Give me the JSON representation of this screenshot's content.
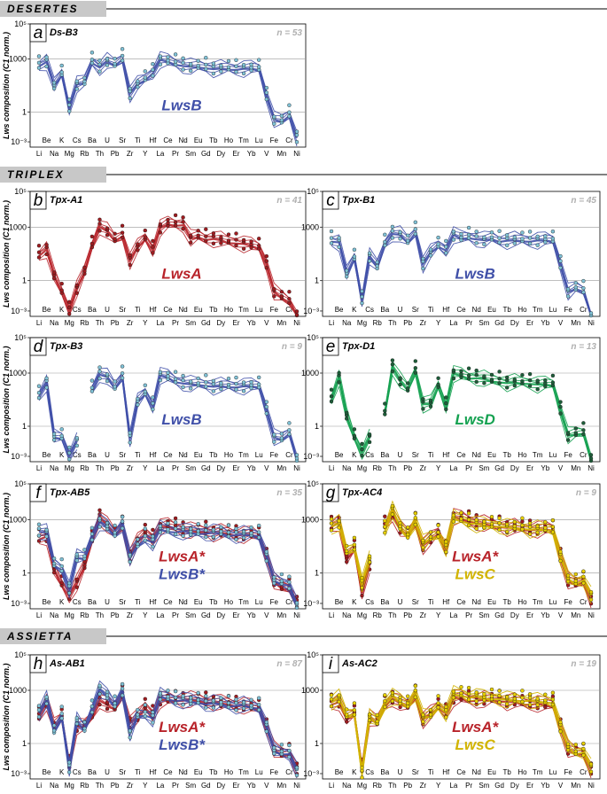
{
  "sections": [
    {
      "label": "DESERTES"
    },
    {
      "label": "TRIPLEX"
    },
    {
      "label": "ASSIETTA"
    }
  ],
  "colors": {
    "LwsA": "#b8232a",
    "LwsB": "#3f4fa8",
    "LwsC": "#d2b400",
    "LwsD": "#14a150",
    "LwsB_pt": "#7fc1d6",
    "LwsA_pt": "#a01c20",
    "LwsC_pt": "#e8d000",
    "LwsD_pt": "#1e5e3a"
  },
  "ylabel": "Lws composition (C1 norm.)",
  "xlabels_top": [
    "Be",
    "K",
    "Cs",
    "Ba",
    "U",
    "Sr",
    "Ti",
    "Hf",
    "Ce",
    "Nd",
    "Eu",
    "Tb",
    "Ho",
    "Tm",
    "Lu",
    "Fe",
    "Cr"
  ],
  "xlabels_bottom": [
    "Li",
    "Na",
    "Mg",
    "Rb",
    "Th",
    "Pb",
    "Zr",
    "Y",
    "La",
    "Pr",
    "Sm",
    "Gd",
    "Dy",
    "Er",
    "Yb",
    "V",
    "Mn",
    "Ni"
  ],
  "chart_data": [
    {
      "type": "line",
      "letter": "a",
      "title": "Ds-B3",
      "n_label": "n = 53",
      "groups": [
        {
          "label": "LwsB",
          "color_key": "LwsB"
        }
      ],
      "yscale": "log",
      "ylim": [
        0.01,
        100000
      ],
      "yticks": [
        "10⁵",
        "1000",
        "1",
        "10⁻³"
      ],
      "elements": [
        "Li",
        "Be",
        "Na",
        "K",
        "Mg",
        "Cs",
        "Rb",
        "Ba",
        "Th",
        "U",
        "Pb",
        "Sr",
        "Zr",
        "Ti",
        "Y",
        "Hf",
        "La",
        "Ce",
        "Pr",
        "Nd",
        "Sm",
        "Eu",
        "Gd",
        "Tb",
        "Dy",
        "Ho",
        "Er",
        "Tm",
        "Yb",
        "Lu",
        "V",
        "Fe",
        "Mn",
        "Cr",
        "Ni"
      ],
      "series": [
        {
          "color_key": "LwsB",
          "log_values": [
            2.7,
            2.9,
            1.5,
            2.2,
            0.3,
            1.6,
            1.7,
            2.9,
            2.6,
            2.9,
            2.7,
            3.1,
            1.1,
            1.6,
            1.9,
            2.3,
            3.0,
            2.9,
            2.8,
            2.7,
            2.6,
            2.6,
            2.6,
            2.5,
            2.5,
            2.5,
            2.5,
            2.5,
            2.5,
            2.5,
            1.0,
            -0.4,
            -0.5,
            -0.1,
            -1.4
          ]
        }
      ]
    },
    {
      "type": "line",
      "letter": "b",
      "title": "Tpx-A1",
      "n_label": "n = 41",
      "groups": [
        {
          "label": "LwsA",
          "color_key": "LwsA"
        }
      ],
      "yscale": "log",
      "ylim": [
        0.01,
        100000
      ],
      "yticks": [
        "10⁵",
        "1000",
        "1",
        "10⁻³"
      ],
      "elements": [
        "Li",
        "Be",
        "Na",
        "K",
        "Mg",
        "Cs",
        "Rb",
        "Ba",
        "Th",
        "U",
        "Pb",
        "Sr",
        "Zr",
        "Ti",
        "Y",
        "Hf",
        "La",
        "Ce",
        "Pr",
        "Nd",
        "Sm",
        "Eu",
        "Gd",
        "Tb",
        "Dy",
        "Ho",
        "Er",
        "Tm",
        "Yb",
        "Lu",
        "V",
        "Fe",
        "Mn",
        "Cr",
        "Ni"
      ],
      "series": [
        {
          "color_key": "LwsA",
          "log_values": [
            1.5,
            1.8,
            0.3,
            -0.6,
            -1.6,
            -0.4,
            0.5,
            2.0,
            3.1,
            2.8,
            2.3,
            2.6,
            1.2,
            1.9,
            2.4,
            1.8,
            3.0,
            3.2,
            3.2,
            3.2,
            2.4,
            2.5,
            2.4,
            2.4,
            2.3,
            2.2,
            2.2,
            2.1,
            2.0,
            1.9,
            1.0,
            -0.6,
            -0.9,
            -1.1,
            -2.0
          ]
        }
      ]
    },
    {
      "type": "line",
      "letter": "c",
      "title": "Tpx-B1",
      "n_label": "n = 45",
      "groups": [
        {
          "label": "LwsB",
          "color_key": "LwsB"
        }
      ],
      "yscale": "log",
      "ylim": [
        0.01,
        100000
      ],
      "yticks": [
        "10⁵",
        "1000",
        "1",
        "10⁻³"
      ],
      "elements": [
        "Li",
        "Be",
        "Na",
        "K",
        "Mg",
        "Cs",
        "Rb",
        "Ba",
        "Th",
        "U",
        "Pb",
        "Sr",
        "Zr",
        "Ti",
        "Y",
        "Hf",
        "La",
        "Ce",
        "Pr",
        "Nd",
        "Sm",
        "Eu",
        "Gd",
        "Tb",
        "Dy",
        "Ho",
        "Er",
        "Tm",
        "Yb",
        "Lu",
        "V",
        "Fe",
        "Mn",
        "Cr",
        "Ni"
      ],
      "series": [
        {
          "color_key": "LwsB",
          "log_values": [
            2.3,
            2.2,
            0.4,
            1.3,
            -1.0,
            1.4,
            0.8,
            2.1,
            2.7,
            2.6,
            2.2,
            2.8,
            1.0,
            1.6,
            2.0,
            1.8,
            2.6,
            2.4,
            2.5,
            2.4,
            2.3,
            2.4,
            2.3,
            2.3,
            2.3,
            2.3,
            2.3,
            2.3,
            2.3,
            2.3,
            1.0,
            -0.6,
            -0.4,
            -0.5,
            -2.1
          ]
        }
      ]
    },
    {
      "type": "line",
      "letter": "d",
      "title": "Tpx-B3",
      "n_label": "n = 9",
      "groups": [
        {
          "label": "LwsB",
          "color_key": "LwsB"
        }
      ],
      "yscale": "log",
      "ylim": [
        0.01,
        100000
      ],
      "yticks": [
        "10⁵",
        "1000",
        "1",
        "10⁻³"
      ],
      "elements": [
        "Li",
        "Be",
        "Na",
        "K",
        "Mg",
        "Cs",
        "Rb",
        "Ba",
        "Th",
        "U",
        "Pb",
        "Sr",
        "Zr",
        "Ti",
        "Y",
        "Hf",
        "La",
        "Ce",
        "Pr",
        "Nd",
        "Sm",
        "Eu",
        "Gd",
        "Tb",
        "Dy",
        "Ho",
        "Er",
        "Tm",
        "Yb",
        "Lu",
        "V",
        "Fe",
        "Mn",
        "Cr",
        "Ni"
      ],
      "series": [
        {
          "color_key": "LwsB",
          "log_values": [
            1.8,
            2.5,
            -0.6,
            -0.6,
            -1.6,
            -0.8,
            null,
            2.1,
            3.0,
            2.8,
            2.2,
            2.9,
            -0.6,
            1.4,
            1.9,
            1.2,
            2.9,
            2.8,
            2.6,
            2.5,
            2.4,
            2.4,
            2.4,
            2.3,
            2.3,
            2.3,
            2.3,
            2.3,
            2.3,
            2.3,
            1.0,
            -0.6,
            -0.7,
            -0.3,
            -1.9
          ]
        }
      ]
    },
    {
      "type": "line",
      "letter": "e",
      "title": "Tpx-D1",
      "n_label": "n = 13",
      "groups": [
        {
          "label": "LwsD",
          "color_key": "LwsD"
        }
      ],
      "yscale": "log",
      "ylim": [
        0.01,
        100000
      ],
      "yticks": [
        "10⁵",
        "1000",
        "1",
        "10⁻³"
      ],
      "elements": [
        "Li",
        "Be",
        "Na",
        "K",
        "Mg",
        "Cs",
        "Rb",
        "Ba",
        "Th",
        "U",
        "Pb",
        "Sr",
        "Zr",
        "Ti",
        "Y",
        "Hf",
        "La",
        "Ce",
        "Pr",
        "Nd",
        "Sm",
        "Eu",
        "Gd",
        "Tb",
        "Dy",
        "Ho",
        "Er",
        "Tm",
        "Yb",
        "Lu",
        "V",
        "Fe",
        "Mn",
        "Cr",
        "Ni"
      ],
      "series": [
        {
          "color_key": "LwsD",
          "log_values": [
            1.6,
            2.8,
            0.6,
            -0.6,
            -1.4,
            -0.6,
            null,
            0.8,
            3.4,
            2.6,
            2.1,
            3.2,
            1.3,
            1.3,
            2.3,
            1.2,
            3.0,
            2.9,
            2.8,
            2.8,
            2.7,
            2.6,
            2.6,
            2.5,
            2.5,
            2.5,
            2.5,
            2.4,
            2.4,
            2.4,
            1.0,
            -0.5,
            -0.4,
            -0.3,
            -1.9
          ]
        }
      ]
    },
    {
      "type": "line",
      "letter": "f",
      "title": "Tpx-AB5",
      "n_label": "n = 35",
      "groups": [
        {
          "label": "LwsA*",
          "color_key": "LwsA"
        },
        {
          "label": "LwsB*",
          "color_key": "LwsB"
        }
      ],
      "yscale": "log",
      "ylim": [
        0.01,
        100000
      ],
      "yticks": [
        "10⁵",
        "1000",
        "1",
        "10⁻³"
      ],
      "elements": [
        "Li",
        "Be",
        "Na",
        "K",
        "Mg",
        "Cs",
        "Rb",
        "Ba",
        "Th",
        "U",
        "Pb",
        "Sr",
        "Zr",
        "Ti",
        "Y",
        "Hf",
        "La",
        "Ce",
        "Pr",
        "Nd",
        "Sm",
        "Eu",
        "Gd",
        "Tb",
        "Dy",
        "Ho",
        "Er",
        "Tm",
        "Yb",
        "Lu",
        "V",
        "Fe",
        "Mn",
        "Cr",
        "Ni"
      ],
      "series": [
        {
          "color_key": "LwsA",
          "log_values": [
            2.0,
            2.1,
            0.2,
            -0.6,
            -1.2,
            -0.5,
            0.4,
            1.9,
            3.2,
            2.7,
            2.2,
            2.7,
            1.0,
            1.8,
            2.3,
            2.0,
            2.6,
            2.7,
            2.6,
            2.5,
            2.4,
            2.4,
            2.4,
            2.3,
            2.3,
            2.3,
            2.2,
            2.2,
            2.2,
            2.1,
            1.0,
            -0.4,
            -0.8,
            -0.8,
            -1.6
          ]
        },
        {
          "color_key": "LwsB",
          "log_values": [
            2.4,
            2.3,
            0.5,
            0.3,
            -0.8,
            0.9,
            0.9,
            2.1,
            2.9,
            2.6,
            2.2,
            2.8,
            0.9,
            1.6,
            2.0,
            1.8,
            2.5,
            2.4,
            2.4,
            2.4,
            2.3,
            2.3,
            2.3,
            2.3,
            2.3,
            2.2,
            2.2,
            2.2,
            2.2,
            2.2,
            1.0,
            -0.4,
            -0.5,
            -0.6,
            -1.8
          ]
        }
      ]
    },
    {
      "type": "line",
      "letter": "g",
      "title": "Tpx-AC4",
      "n_label": "n = 9",
      "groups": [
        {
          "label": "LwsA*",
          "color_key": "LwsA"
        },
        {
          "label": "LwsC",
          "color_key": "LwsC"
        }
      ],
      "yscale": "log",
      "ylim": [
        0.01,
        100000
      ],
      "yticks": [
        "10⁵",
        "1000",
        "1",
        "10⁻³"
      ],
      "elements": [
        "Li",
        "Be",
        "Na",
        "K",
        "Mg",
        "Cs",
        "Rb",
        "Ba",
        "Th",
        "U",
        "Pb",
        "Sr",
        "Zr",
        "Ti",
        "Y",
        "Hf",
        "La",
        "Ce",
        "Pr",
        "Nd",
        "Sm",
        "Eu",
        "Gd",
        "Tb",
        "Dy",
        "Ho",
        "Er",
        "Tm",
        "Yb",
        "Lu",
        "V",
        "Fe",
        "Mn",
        "Cr",
        "Ni"
      ],
      "series": [
        {
          "color_key": "LwsA",
          "log_values": [
            2.7,
            2.9,
            0.8,
            1.4,
            -1.0,
            0.5,
            null,
            2.7,
            3.4,
            2.5,
            2.2,
            2.9,
            1.6,
            1.9,
            2.3,
            1.4,
            3.2,
            3.1,
            3.0,
            2.9,
            2.8,
            2.7,
            2.7,
            2.6,
            2.6,
            2.5,
            2.5,
            2.5,
            2.5,
            2.5,
            1.0,
            -0.4,
            -0.6,
            -0.4,
            -1.4
          ]
        },
        {
          "color_key": "LwsC",
          "log_values": [
            2.7,
            2.8,
            1.2,
            1.5,
            -0.5,
            0.8,
            null,
            2.5,
            3.6,
            2.6,
            2.1,
            3.0,
            1.7,
            2.0,
            2.2,
            1.5,
            3.1,
            3.0,
            2.9,
            2.8,
            2.7,
            2.7,
            2.7,
            2.6,
            2.6,
            2.6,
            2.5,
            2.5,
            2.5,
            2.5,
            1.0,
            -0.3,
            -0.5,
            -0.3,
            -1.2
          ]
        }
      ]
    },
    {
      "type": "line",
      "letter": "h",
      "title": "As-AB1",
      "n_label": "n = 87",
      "groups": [
        {
          "label": "LwsA*",
          "color_key": "LwsA"
        },
        {
          "label": "LwsB*",
          "color_key": "LwsB"
        }
      ],
      "yscale": "log",
      "ylim": [
        0.01,
        100000
      ],
      "yticks": [
        "10⁵",
        "1000",
        "1",
        "10⁻³"
      ],
      "elements": [
        "Li",
        "Be",
        "Na",
        "K",
        "Mg",
        "Cs",
        "Rb",
        "Ba",
        "Th",
        "U",
        "Pb",
        "Sr",
        "Zr",
        "Ti",
        "Y",
        "Hf",
        "La",
        "Ce",
        "Pr",
        "Nd",
        "Sm",
        "Eu",
        "Gd",
        "Tb",
        "Dy",
        "Ho",
        "Er",
        "Tm",
        "Yb",
        "Lu",
        "V",
        "Fe",
        "Mn",
        "Cr",
        "Ni"
      ],
      "series": [
        {
          "color_key": "LwsA",
          "log_values": [
            1.6,
            2.4,
            1.0,
            1.5,
            -1.1,
            1.0,
            1.0,
            1.6,
            2.5,
            2.2,
            2.0,
            2.8,
            1.2,
            1.5,
            2.1,
            1.7,
            2.5,
            2.5,
            2.5,
            2.5,
            2.5,
            2.5,
            2.4,
            2.4,
            2.3,
            2.3,
            2.2,
            2.2,
            2.1,
            2.0,
            1.0,
            -0.3,
            -0.6,
            -0.5,
            -1.4
          ]
        },
        {
          "color_key": "LwsB",
          "log_values": [
            1.8,
            2.5,
            0.7,
            1.6,
            -1.3,
            1.3,
            0.8,
            2.0,
            3.1,
            2.7,
            2.2,
            3.0,
            0.6,
            1.6,
            1.7,
            1.5,
            2.7,
            2.6,
            2.5,
            2.5,
            2.4,
            2.4,
            2.3,
            2.3,
            2.3,
            2.2,
            2.2,
            2.2,
            2.1,
            2.1,
            1.0,
            -0.4,
            -0.5,
            -0.5,
            -1.5
          ]
        }
      ]
    },
    {
      "type": "line",
      "letter": "i",
      "title": "As-AC2",
      "n_label": "n = 19",
      "groups": [
        {
          "label": "LwsA*",
          "color_key": "LwsA"
        },
        {
          "label": "LwsC",
          "color_key": "LwsC"
        }
      ],
      "yscale": "log",
      "ylim": [
        0.01,
        100000
      ],
      "yticks": [
        "10⁵",
        "1000",
        "1",
        "10⁻³"
      ],
      "elements": [
        "Li",
        "Be",
        "Na",
        "K",
        "Mg",
        "Cs",
        "Rb",
        "Ba",
        "Th",
        "U",
        "Pb",
        "Sr",
        "Zr",
        "Ti",
        "Y",
        "Hf",
        "La",
        "Ce",
        "Pr",
        "Nd",
        "Sm",
        "Eu",
        "Gd",
        "Tb",
        "Dy",
        "Ho",
        "Er",
        "Tm",
        "Yb",
        "Lu",
        "V",
        "Fe",
        "Mn",
        "Cr",
        "Ni"
      ],
      "series": [
        {
          "color_key": "LwsA",
          "log_values": [
            2.3,
            2.4,
            1.4,
            1.7,
            -1.3,
            1.5,
            1.2,
            2.2,
            2.6,
            2.3,
            2.1,
            2.8,
            1.4,
            1.7,
            2.1,
            1.8,
            2.6,
            2.6,
            2.5,
            2.5,
            2.5,
            2.5,
            2.5,
            2.4,
            2.4,
            2.3,
            2.3,
            2.3,
            2.2,
            2.2,
            1.0,
            -0.3,
            -0.5,
            -0.5,
            -1.4
          ]
        },
        {
          "color_key": "LwsC",
          "log_values": [
            2.4,
            2.6,
            1.6,
            1.8,
            -1.6,
            1.5,
            1.2,
            2.3,
            2.7,
            2.4,
            2.2,
            2.9,
            1.5,
            1.6,
            2.2,
            1.8,
            2.8,
            2.8,
            2.7,
            2.7,
            2.6,
            2.6,
            2.6,
            2.5,
            2.5,
            2.5,
            2.5,
            2.4,
            2.4,
            2.4,
            1.0,
            -0.2,
            -0.5,
            -0.4,
            -1.3
          ]
        }
      ]
    }
  ]
}
